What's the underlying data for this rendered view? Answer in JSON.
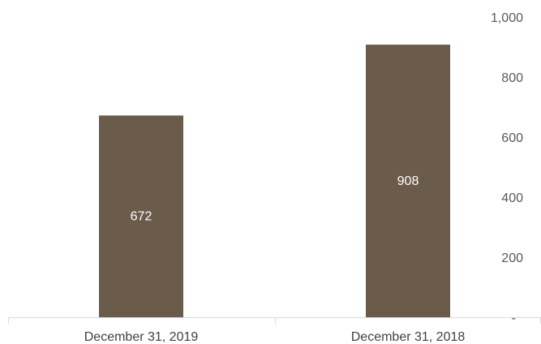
{
  "chart_data": {
    "type": "bar",
    "categories": [
      "December 31, 2019",
      "December 31, 2018"
    ],
    "values": [
      672,
      908
    ],
    "data_labels": [
      "672",
      "908"
    ],
    "y_axis": {
      "position": "right",
      "ylim": [
        0,
        1000
      ],
      "ticks": [
        0,
        200,
        400,
        600,
        800,
        1000
      ],
      "tick_labels": [
        "-",
        "200",
        "400",
        "600",
        "800",
        "1,000"
      ]
    },
    "grid": false,
    "legend": "none",
    "colors": {
      "bar": "#6B5B4A",
      "axis_line": "#D9D9D9"
    }
  }
}
